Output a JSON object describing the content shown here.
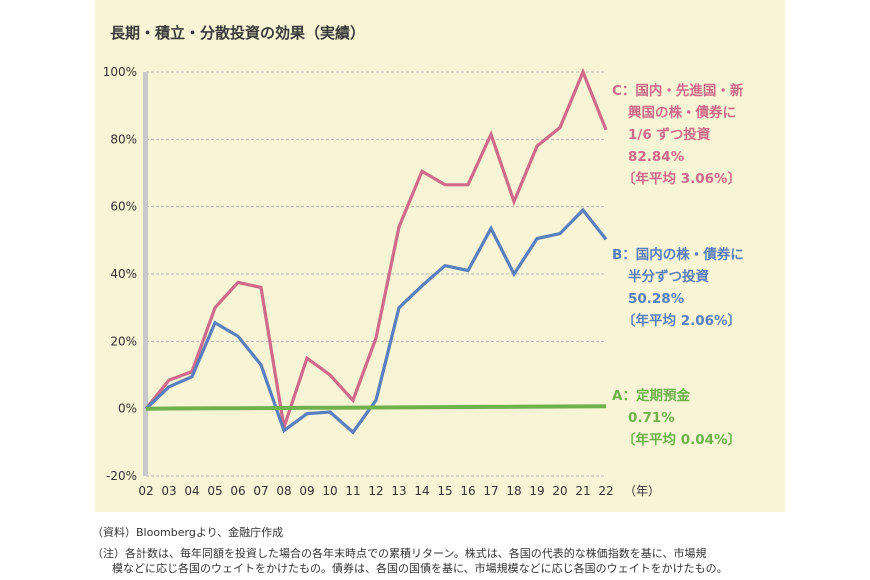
{
  "chart_data": {
    "type": "line",
    "title": "長期・積立・分散投資の効果（実績）",
    "x_unit": "（年）",
    "categories": [
      "02",
      "03",
      "04",
      "05",
      "06",
      "07",
      "08",
      "09",
      "10",
      "11",
      "12",
      "13",
      "14",
      "15",
      "16",
      "17",
      "18",
      "19",
      "20",
      "21",
      "22"
    ],
    "y_ticks": [
      "100%",
      "80%",
      "60%",
      "40%",
      "20%",
      "0%",
      "-20%"
    ],
    "ylim": [
      -20,
      100
    ],
    "grid": true,
    "series": [
      {
        "key": "C",
        "color": "#cf6b8a",
        "values": [
          0,
          8.5,
          11,
          30,
          37.5,
          36,
          -5.5,
          15,
          10,
          2.5,
          21,
          54,
          70.5,
          66.5,
          66.5,
          81.5,
          61.5,
          78,
          83.5,
          100,
          82.84
        ],
        "label_lines": [
          "C：国内・先進国・新",
          "興国の株・債券に",
          "1/6 ずつ投資",
          "82.84%",
          "〔年平均 3.06%〕"
        ]
      },
      {
        "key": "B",
        "color": "#5a7fbf",
        "values": [
          0,
          6.5,
          9.5,
          25.5,
          21.5,
          13,
          -6.5,
          -1.5,
          -1,
          -7,
          2.5,
          30,
          36.5,
          42.5,
          41,
          53.5,
          40,
          50.5,
          52,
          59,
          50.28
        ],
        "label_lines": [
          "B：国内の株・債券に",
          "半分ずつ投資",
          "50.28%",
          "〔年平均 2.06%〕"
        ]
      },
      {
        "key": "A",
        "color": "#6fb24c",
        "values": [
          0,
          0.035,
          0.07,
          0.105,
          0.14,
          0.175,
          0.21,
          0.245,
          0.28,
          0.315,
          0.35,
          0.385,
          0.42,
          0.455,
          0.49,
          0.525,
          0.56,
          0.6,
          0.64,
          0.68,
          0.71
        ],
        "label_lines": [
          "A：定期預金",
          "0.71%",
          "〔年平均 0.04%〕"
        ]
      }
    ]
  },
  "notes": {
    "source": "（資料）Bloombergより、金融庁作成",
    "note_line1": "（注）各計数は、毎年同額を投資した場合の各年末時点での累積リターン。株式は、各国の代表的な株価指数を基に、市場規",
    "note_line2": "模などに応じ各国のウェイトをかけたもの。債券は、各国の国債を基に、市場規模などに応じ各国のウェイトをかけたもの。"
  }
}
